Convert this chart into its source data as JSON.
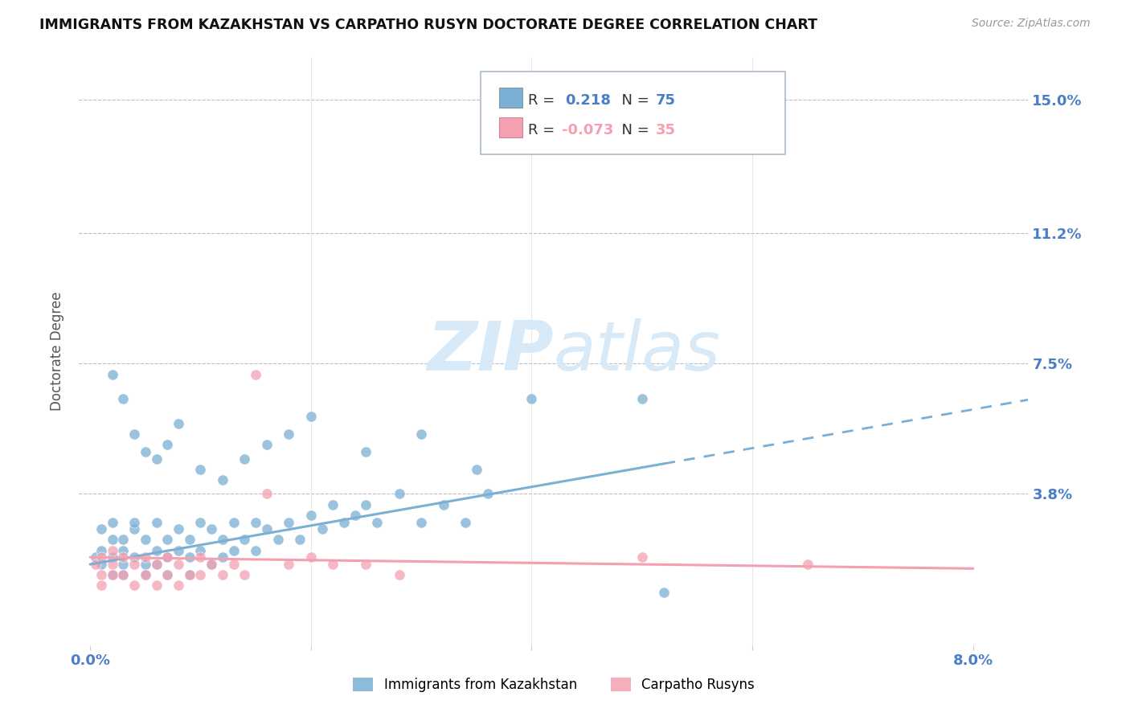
{
  "title": "IMMIGRANTS FROM KAZAKHSTAN VS CARPATHO RUSYN DOCTORATE DEGREE CORRELATION CHART",
  "source": "Source: ZipAtlas.com",
  "ylabel": "Doctorate Degree",
  "ytick_labels": [
    "15.0%",
    "11.2%",
    "7.5%",
    "3.8%"
  ],
  "ytick_values": [
    0.15,
    0.112,
    0.075,
    0.038
  ],
  "xlim": [
    0.0,
    0.08
  ],
  "ylim": [
    -0.005,
    0.162
  ],
  "color_blue": "#7BAFD4",
  "color_pink": "#F4A0B0",
  "color_axis_labels": "#4A7EC7",
  "blue_r": "0.218",
  "blue_n": "75",
  "pink_r": "-0.073",
  "pink_n": "35",
  "blue_scatter_x": [
    0.0005,
    0.001,
    0.001,
    0.001,
    0.002,
    0.002,
    0.002,
    0.002,
    0.003,
    0.003,
    0.003,
    0.003,
    0.004,
    0.004,
    0.004,
    0.005,
    0.005,
    0.005,
    0.006,
    0.006,
    0.006,
    0.007,
    0.007,
    0.007,
    0.008,
    0.008,
    0.009,
    0.009,
    0.009,
    0.01,
    0.01,
    0.011,
    0.011,
    0.012,
    0.012,
    0.013,
    0.013,
    0.014,
    0.015,
    0.015,
    0.016,
    0.017,
    0.018,
    0.019,
    0.02,
    0.021,
    0.022,
    0.023,
    0.024,
    0.025,
    0.026,
    0.028,
    0.03,
    0.032,
    0.034,
    0.036,
    0.002,
    0.003,
    0.004,
    0.005,
    0.006,
    0.007,
    0.008,
    0.01,
    0.012,
    0.014,
    0.016,
    0.018,
    0.02,
    0.025,
    0.03,
    0.035,
    0.04,
    0.05,
    0.052
  ],
  "blue_scatter_y": [
    0.02,
    0.022,
    0.028,
    0.018,
    0.025,
    0.03,
    0.02,
    0.015,
    0.022,
    0.018,
    0.025,
    0.015,
    0.028,
    0.02,
    0.03,
    0.018,
    0.025,
    0.015,
    0.022,
    0.03,
    0.018,
    0.025,
    0.02,
    0.015,
    0.028,
    0.022,
    0.02,
    0.025,
    0.015,
    0.03,
    0.022,
    0.028,
    0.018,
    0.025,
    0.02,
    0.03,
    0.022,
    0.025,
    0.03,
    0.022,
    0.028,
    0.025,
    0.03,
    0.025,
    0.032,
    0.028,
    0.035,
    0.03,
    0.032,
    0.035,
    0.03,
    0.038,
    0.03,
    0.035,
    0.03,
    0.038,
    0.072,
    0.065,
    0.055,
    0.05,
    0.048,
    0.052,
    0.058,
    0.045,
    0.042,
    0.048,
    0.052,
    0.055,
    0.06,
    0.05,
    0.055,
    0.045,
    0.065,
    0.065,
    0.01
  ],
  "pink_scatter_x": [
    0.0005,
    0.001,
    0.001,
    0.001,
    0.002,
    0.002,
    0.002,
    0.003,
    0.003,
    0.004,
    0.004,
    0.005,
    0.005,
    0.006,
    0.006,
    0.007,
    0.007,
    0.008,
    0.008,
    0.009,
    0.01,
    0.01,
    0.011,
    0.012,
    0.013,
    0.014,
    0.015,
    0.016,
    0.018,
    0.02,
    0.022,
    0.025,
    0.028,
    0.05,
    0.065
  ],
  "pink_scatter_y": [
    0.018,
    0.02,
    0.015,
    0.012,
    0.018,
    0.022,
    0.015,
    0.02,
    0.015,
    0.018,
    0.012,
    0.02,
    0.015,
    0.018,
    0.012,
    0.02,
    0.015,
    0.018,
    0.012,
    0.015,
    0.02,
    0.015,
    0.018,
    0.015,
    0.018,
    0.015,
    0.072,
    0.038,
    0.018,
    0.02,
    0.018,
    0.018,
    0.015,
    0.02,
    0.018
  ],
  "blue_line_x": [
    0.0,
    0.052,
    0.085
  ],
  "blue_line_y_start": 0.018,
  "blue_line_slope": 0.55,
  "pink_line_x": [
    0.0,
    0.08
  ],
  "pink_line_y_start": 0.02,
  "pink_line_slope": -0.04
}
